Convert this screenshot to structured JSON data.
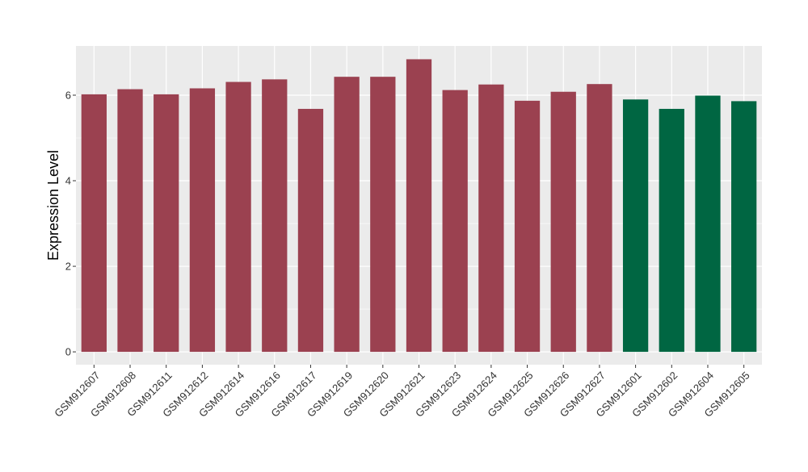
{
  "chart_data": {
    "type": "bar",
    "title": "",
    "xlabel": "",
    "ylabel": "Expression Level",
    "ylim": [
      -0.3,
      7.15
    ],
    "yticks": [
      0,
      2,
      4,
      6
    ],
    "grid": true,
    "legend": "none",
    "categories": [
      "GSM912607",
      "GSM912608",
      "GSM912611",
      "GSM912612",
      "GSM912614",
      "GSM912616",
      "GSM912617",
      "GSM912619",
      "GSM912620",
      "GSM912621",
      "GSM912623",
      "GSM912624",
      "GSM912625",
      "GSM912626",
      "GSM912627",
      "GSM912601",
      "GSM912602",
      "GSM912604",
      "GSM912605"
    ],
    "values": [
      6.02,
      6.14,
      6.02,
      6.16,
      6.31,
      6.37,
      5.68,
      6.43,
      6.43,
      6.84,
      6.12,
      6.25,
      5.87,
      6.08,
      6.26,
      5.9,
      5.68,
      5.99,
      5.86
    ],
    "groups": [
      0,
      0,
      0,
      0,
      0,
      0,
      0,
      0,
      0,
      0,
      0,
      0,
      0,
      0,
      0,
      1,
      1,
      1,
      1
    ],
    "colors": [
      "#9b4150",
      "#006642"
    ],
    "panel_background": "#ebebeb",
    "grid_color": "#ffffff"
  }
}
